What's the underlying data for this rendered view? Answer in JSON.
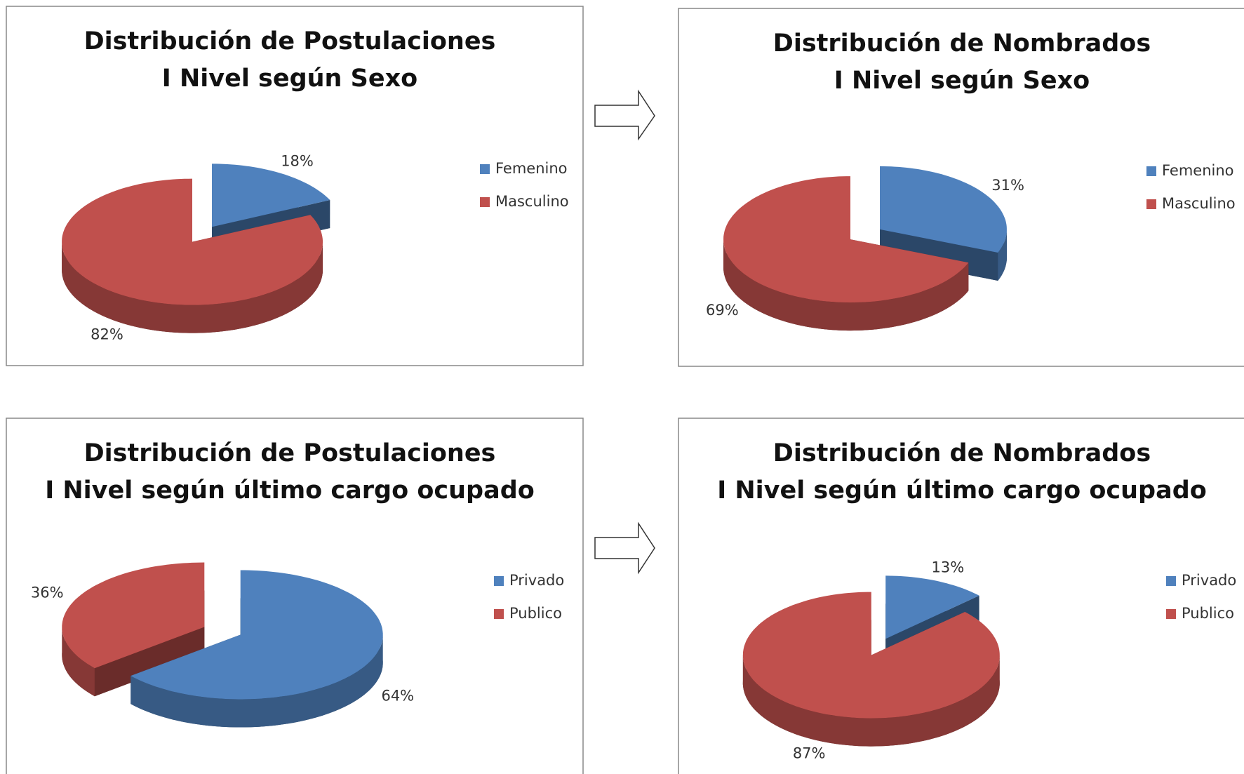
{
  "chart_data": [
    {
      "type": "pie",
      "title": [
        "Distribución de Postulaciones",
        "I Nivel según Sexo"
      ],
      "categories": [
        "Femenino",
        "Masculino"
      ],
      "values": [
        18,
        82
      ],
      "value_labels": [
        "18%",
        "82%"
      ],
      "colors": [
        "#4f81bd",
        "#c0504d"
      ]
    },
    {
      "type": "pie",
      "title": [
        "Distribución de Nombrados",
        "I Nivel según Sexo"
      ],
      "categories": [
        "Femenino",
        "Masculino"
      ],
      "values": [
        31,
        69
      ],
      "value_labels": [
        "31%",
        "69%"
      ],
      "colors": [
        "#4f81bd",
        "#c0504d"
      ]
    },
    {
      "type": "pie",
      "title": [
        "Distribución de Postulaciones",
        "I Nivel según último cargo ocupado"
      ],
      "categories": [
        "Privado",
        "Publico"
      ],
      "values": [
        64,
        36
      ],
      "value_labels": [
        "64%",
        "36%"
      ],
      "colors": [
        "#4f81bd",
        "#c0504d"
      ]
    },
    {
      "type": "pie",
      "title": [
        "Distribución de Nombrados",
        "I Nivel según último cargo ocupado"
      ],
      "categories": [
        "Privado",
        "Publico"
      ],
      "values": [
        13,
        87
      ],
      "value_labels": [
        "13%",
        "87%"
      ],
      "colors": [
        "#4f81bd",
        "#c0504d"
      ]
    }
  ]
}
